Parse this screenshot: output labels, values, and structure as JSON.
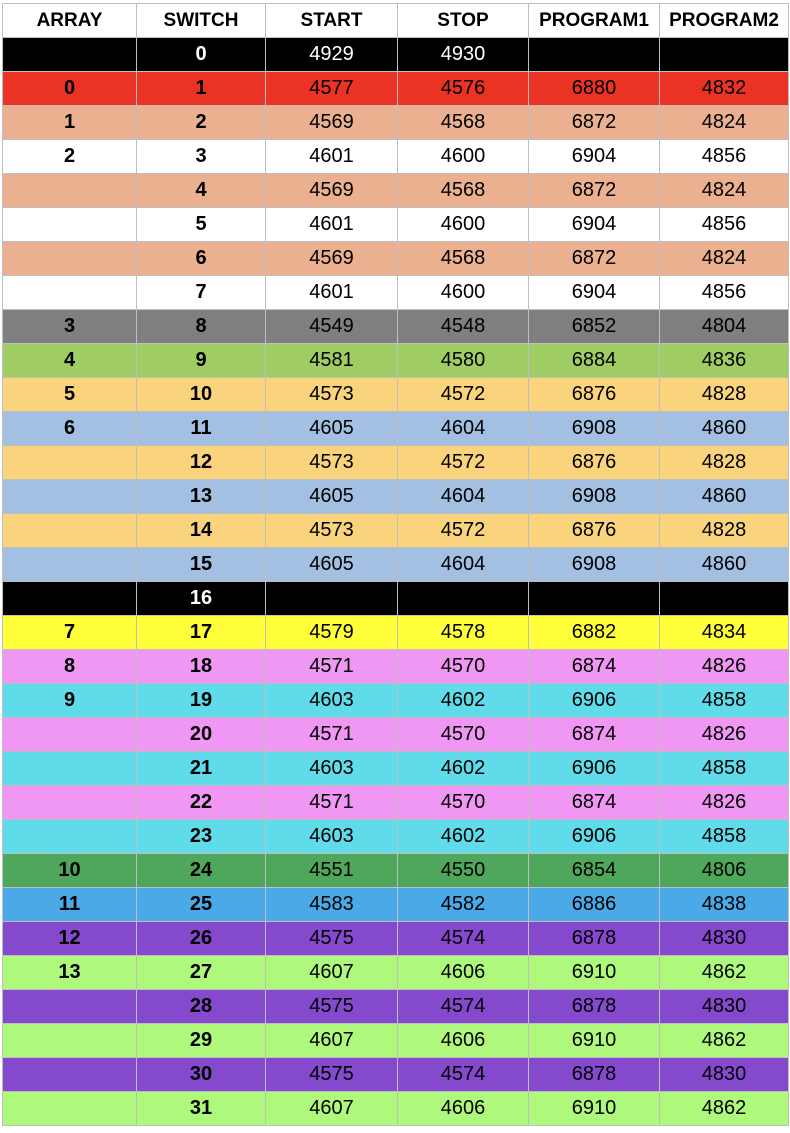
{
  "headers": [
    "ARRAY",
    "SWITCH",
    "START",
    "STOP",
    "PROGRAM1",
    "PROGRAM2"
  ],
  "colors": {
    "black": "#000000",
    "red": "#ea3323",
    "salmon": "#eab08f",
    "white": "#ffffff",
    "gray": "#7f7f7f",
    "olive": "#9fcc63",
    "gold": "#f9d47c",
    "steel": "#a3bfe2",
    "yellow": "#ffff3a",
    "pink": "#ef97f3",
    "cyan": "#5fdbe9",
    "green": "#4ea75b",
    "blue": "#4aa9e6",
    "purple": "#8449cd",
    "lime": "#aef97c"
  },
  "rows": [
    {
      "array": "",
      "switch": "0",
      "start": "4929",
      "stop": "4930",
      "program1": "",
      "program2": "",
      "color": "black"
    },
    {
      "array": "0",
      "switch": "1",
      "start": "4577",
      "stop": "4576",
      "program1": "6880",
      "program2": "4832",
      "color": "red"
    },
    {
      "array": "1",
      "switch": "2",
      "start": "4569",
      "stop": "4568",
      "program1": "6872",
      "program2": "4824",
      "color": "salmon"
    },
    {
      "array": "2",
      "switch": "3",
      "start": "4601",
      "stop": "4600",
      "program1": "6904",
      "program2": "4856",
      "color": "white"
    },
    {
      "array": "",
      "switch": "4",
      "start": "4569",
      "stop": "4568",
      "program1": "6872",
      "program2": "4824",
      "color": "salmon"
    },
    {
      "array": "",
      "switch": "5",
      "start": "4601",
      "stop": "4600",
      "program1": "6904",
      "program2": "4856",
      "color": "white"
    },
    {
      "array": "",
      "switch": "6",
      "start": "4569",
      "stop": "4568",
      "program1": "6872",
      "program2": "4824",
      "color": "salmon"
    },
    {
      "array": "",
      "switch": "7",
      "start": "4601",
      "stop": "4600",
      "program1": "6904",
      "program2": "4856",
      "color": "white"
    },
    {
      "array": "3",
      "switch": "8",
      "start": "4549",
      "stop": "4548",
      "program1": "6852",
      "program2": "4804",
      "color": "gray"
    },
    {
      "array": "4",
      "switch": "9",
      "start": "4581",
      "stop": "4580",
      "program1": "6884",
      "program2": "4836",
      "color": "olive"
    },
    {
      "array": "5",
      "switch": "10",
      "start": "4573",
      "stop": "4572",
      "program1": "6876",
      "program2": "4828",
      "color": "gold"
    },
    {
      "array": "6",
      "switch": "11",
      "start": "4605",
      "stop": "4604",
      "program1": "6908",
      "program2": "4860",
      "color": "steel"
    },
    {
      "array": "",
      "switch": "12",
      "start": "4573",
      "stop": "4572",
      "program1": "6876",
      "program2": "4828",
      "color": "gold"
    },
    {
      "array": "",
      "switch": "13",
      "start": "4605",
      "stop": "4604",
      "program1": "6908",
      "program2": "4860",
      "color": "steel"
    },
    {
      "array": "",
      "switch": "14",
      "start": "4573",
      "stop": "4572",
      "program1": "6876",
      "program2": "4828",
      "color": "gold"
    },
    {
      "array": "",
      "switch": "15",
      "start": "4605",
      "stop": "4604",
      "program1": "6908",
      "program2": "4860",
      "color": "steel"
    },
    {
      "array": "",
      "switch": "16",
      "start": "",
      "stop": "",
      "program1": "",
      "program2": "",
      "color": "black"
    },
    {
      "array": "7",
      "switch": "17",
      "start": "4579",
      "stop": "4578",
      "program1": "6882",
      "program2": "4834",
      "color": "yellow"
    },
    {
      "array": "8",
      "switch": "18",
      "start": "4571",
      "stop": "4570",
      "program1": "6874",
      "program2": "4826",
      "color": "pink"
    },
    {
      "array": "9",
      "switch": "19",
      "start": "4603",
      "stop": "4602",
      "program1": "6906",
      "program2": "4858",
      "color": "cyan"
    },
    {
      "array": "",
      "switch": "20",
      "start": "4571",
      "stop": "4570",
      "program1": "6874",
      "program2": "4826",
      "color": "pink"
    },
    {
      "array": "",
      "switch": "21",
      "start": "4603",
      "stop": "4602",
      "program1": "6906",
      "program2": "4858",
      "color": "cyan"
    },
    {
      "array": "",
      "switch": "22",
      "start": "4571",
      "stop": "4570",
      "program1": "6874",
      "program2": "4826",
      "color": "pink"
    },
    {
      "array": "",
      "switch": "23",
      "start": "4603",
      "stop": "4602",
      "program1": "6906",
      "program2": "4858",
      "color": "cyan"
    },
    {
      "array": "10",
      "switch": "24",
      "start": "4551",
      "stop": "4550",
      "program1": "6854",
      "program2": "4806",
      "color": "green"
    },
    {
      "array": "11",
      "switch": "25",
      "start": "4583",
      "stop": "4582",
      "program1": "6886",
      "program2": "4838",
      "color": "blue"
    },
    {
      "array": "12",
      "switch": "26",
      "start": "4575",
      "stop": "4574",
      "program1": "6878",
      "program2": "4830",
      "color": "purple"
    },
    {
      "array": "13",
      "switch": "27",
      "start": "4607",
      "stop": "4606",
      "program1": "6910",
      "program2": "4862",
      "color": "lime"
    },
    {
      "array": "",
      "switch": "28",
      "start": "4575",
      "stop": "4574",
      "program1": "6878",
      "program2": "4830",
      "color": "purple"
    },
    {
      "array": "",
      "switch": "29",
      "start": "4607",
      "stop": "4606",
      "program1": "6910",
      "program2": "4862",
      "color": "lime"
    },
    {
      "array": "",
      "switch": "30",
      "start": "4575",
      "stop": "4574",
      "program1": "6878",
      "program2": "4830",
      "color": "purple"
    },
    {
      "array": "",
      "switch": "31",
      "start": "4607",
      "stop": "4606",
      "program1": "6910",
      "program2": "4862",
      "color": "lime"
    }
  ]
}
